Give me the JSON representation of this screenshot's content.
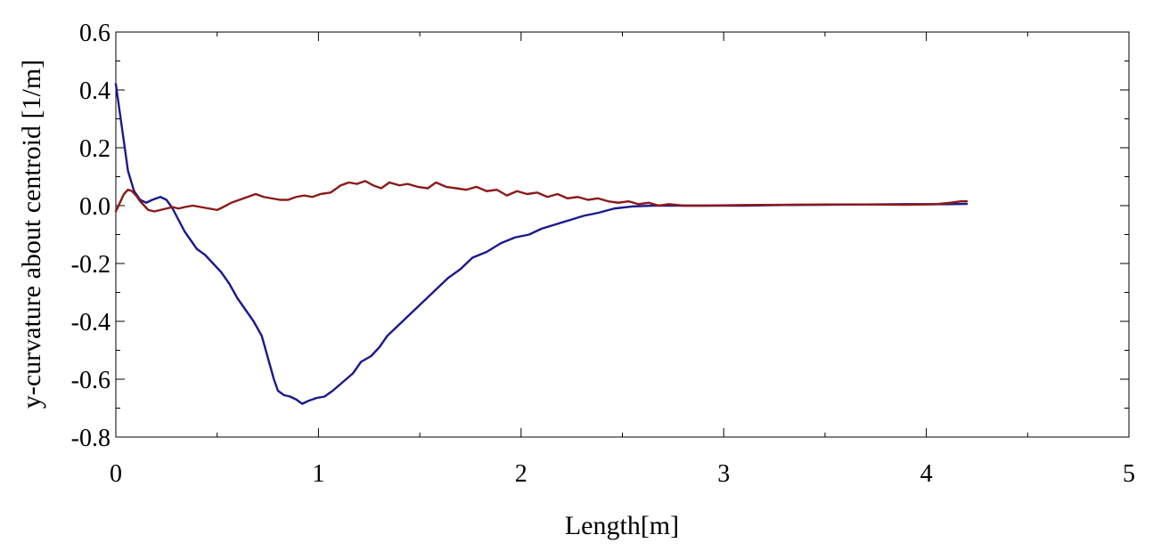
{
  "chart_data": {
    "type": "line",
    "title": "",
    "xlabel": "Length[m]",
    "ylabel": "y-curvature about centroid [1/m]",
    "xlim": [
      0,
      5
    ],
    "ylim": [
      -0.8,
      0.6
    ],
    "x_ticks": [
      0,
      1,
      2,
      3,
      4,
      5
    ],
    "x_tick_labels": [
      "0",
      "1",
      "2",
      "3",
      "4",
      "5"
    ],
    "y_ticks": [
      0.6,
      0.4,
      0.2,
      0.0,
      -0.2,
      -0.4,
      -0.6,
      -0.8
    ],
    "y_tick_labels": [
      "0.6",
      "0.4",
      "0.2",
      "0.0",
      "-0.2",
      "-0.4",
      "-0.6",
      "-0.8"
    ],
    "grid": false,
    "legend": "none",
    "series": [
      {
        "color": "#1a1a8c",
        "points": [
          [
            0.0,
            0.42
          ],
          [
            0.02,
            0.32
          ],
          [
            0.04,
            0.22
          ],
          [
            0.06,
            0.12
          ],
          [
            0.09,
            0.05
          ],
          [
            0.12,
            0.02
          ],
          [
            0.15,
            0.01
          ],
          [
            0.18,
            0.02
          ],
          [
            0.22,
            0.03
          ],
          [
            0.25,
            0.02
          ],
          [
            0.28,
            -0.01
          ],
          [
            0.31,
            -0.05
          ],
          [
            0.34,
            -0.09
          ],
          [
            0.37,
            -0.12
          ],
          [
            0.4,
            -0.15
          ],
          [
            0.44,
            -0.17
          ],
          [
            0.48,
            -0.2
          ],
          [
            0.52,
            -0.23
          ],
          [
            0.56,
            -0.27
          ],
          [
            0.6,
            -0.32
          ],
          [
            0.64,
            -0.36
          ],
          [
            0.68,
            -0.4
          ],
          [
            0.72,
            -0.45
          ],
          [
            0.74,
            -0.5
          ],
          [
            0.76,
            -0.55
          ],
          [
            0.78,
            -0.6
          ],
          [
            0.8,
            -0.64
          ],
          [
            0.83,
            -0.655
          ],
          [
            0.86,
            -0.66
          ],
          [
            0.89,
            -0.67
          ],
          [
            0.92,
            -0.685
          ],
          [
            0.95,
            -0.675
          ],
          [
            0.99,
            -0.665
          ],
          [
            1.03,
            -0.66
          ],
          [
            1.07,
            -0.64
          ],
          [
            1.12,
            -0.61
          ],
          [
            1.17,
            -0.58
          ],
          [
            1.21,
            -0.54
          ],
          [
            1.26,
            -0.52
          ],
          [
            1.3,
            -0.49
          ],
          [
            1.34,
            -0.45
          ],
          [
            1.4,
            -0.41
          ],
          [
            1.46,
            -0.37
          ],
          [
            1.52,
            -0.33
          ],
          [
            1.58,
            -0.29
          ],
          [
            1.64,
            -0.25
          ],
          [
            1.7,
            -0.22
          ],
          [
            1.76,
            -0.18
          ],
          [
            1.83,
            -0.16
          ],
          [
            1.9,
            -0.13
          ],
          [
            1.97,
            -0.11
          ],
          [
            2.04,
            -0.1
          ],
          [
            2.1,
            -0.08
          ],
          [
            2.17,
            -0.065
          ],
          [
            2.24,
            -0.05
          ],
          [
            2.31,
            -0.035
          ],
          [
            2.38,
            -0.025
          ],
          [
            2.46,
            -0.01
          ],
          [
            2.55,
            -0.003
          ],
          [
            2.65,
            0.0
          ],
          [
            2.75,
            0.0
          ],
          [
            2.9,
            0.0
          ],
          [
            3.1,
            0.0
          ],
          [
            3.3,
            0.002
          ],
          [
            3.5,
            0.003
          ],
          [
            3.7,
            0.004
          ],
          [
            3.9,
            0.005
          ],
          [
            4.1,
            0.005
          ],
          [
            4.2,
            0.006
          ]
        ]
      },
      {
        "color": "#8b1a1a",
        "points": [
          [
            0.0,
            -0.02
          ],
          [
            0.02,
            0.01
          ],
          [
            0.04,
            0.04
          ],
          [
            0.06,
            0.055
          ],
          [
            0.08,
            0.05
          ],
          [
            0.1,
            0.035
          ],
          [
            0.12,
            0.015
          ],
          [
            0.14,
            0.0
          ],
          [
            0.16,
            -0.015
          ],
          [
            0.19,
            -0.02
          ],
          [
            0.22,
            -0.015
          ],
          [
            0.25,
            -0.01
          ],
          [
            0.28,
            -0.005
          ],
          [
            0.31,
            -0.01
          ],
          [
            0.34,
            -0.005
          ],
          [
            0.38,
            0.0
          ],
          [
            0.42,
            -0.005
          ],
          [
            0.46,
            -0.01
          ],
          [
            0.5,
            -0.015
          ],
          [
            0.53,
            -0.005
          ],
          [
            0.57,
            0.01
          ],
          [
            0.61,
            0.02
          ],
          [
            0.65,
            0.03
          ],
          [
            0.69,
            0.04
          ],
          [
            0.73,
            0.03
          ],
          [
            0.77,
            0.025
          ],
          [
            0.81,
            0.02
          ],
          [
            0.85,
            0.02
          ],
          [
            0.89,
            0.03
          ],
          [
            0.93,
            0.035
          ],
          [
            0.97,
            0.03
          ],
          [
            1.01,
            0.04
          ],
          [
            1.06,
            0.045
          ],
          [
            1.11,
            0.07
          ],
          [
            1.15,
            0.08
          ],
          [
            1.19,
            0.075
          ],
          [
            1.23,
            0.085
          ],
          [
            1.27,
            0.07
          ],
          [
            1.31,
            0.06
          ],
          [
            1.35,
            0.08
          ],
          [
            1.4,
            0.07
          ],
          [
            1.44,
            0.075
          ],
          [
            1.49,
            0.065
          ],
          [
            1.54,
            0.06
          ],
          [
            1.58,
            0.08
          ],
          [
            1.63,
            0.065
          ],
          [
            1.68,
            0.06
          ],
          [
            1.73,
            0.055
          ],
          [
            1.78,
            0.065
          ],
          [
            1.83,
            0.05
          ],
          [
            1.88,
            0.055
          ],
          [
            1.93,
            0.035
          ],
          [
            1.98,
            0.05
          ],
          [
            2.03,
            0.04
          ],
          [
            2.08,
            0.045
          ],
          [
            2.13,
            0.03
          ],
          [
            2.18,
            0.04
          ],
          [
            2.23,
            0.025
          ],
          [
            2.28,
            0.03
          ],
          [
            2.33,
            0.02
          ],
          [
            2.38,
            0.025
          ],
          [
            2.43,
            0.015
          ],
          [
            2.48,
            0.01
          ],
          [
            2.53,
            0.015
          ],
          [
            2.58,
            0.005
          ],
          [
            2.63,
            0.01
          ],
          [
            2.68,
            0.0
          ],
          [
            2.73,
            0.005
          ],
          [
            2.8,
            0.0
          ],
          [
            2.9,
            0.0
          ],
          [
            3.1,
            0.002
          ],
          [
            3.3,
            0.003
          ],
          [
            3.5,
            0.004
          ],
          [
            3.7,
            0.004
          ],
          [
            3.9,
            0.003
          ],
          [
            4.05,
            0.005
          ],
          [
            4.12,
            0.01
          ],
          [
            4.17,
            0.015
          ],
          [
            4.2,
            0.015
          ]
        ]
      }
    ]
  }
}
